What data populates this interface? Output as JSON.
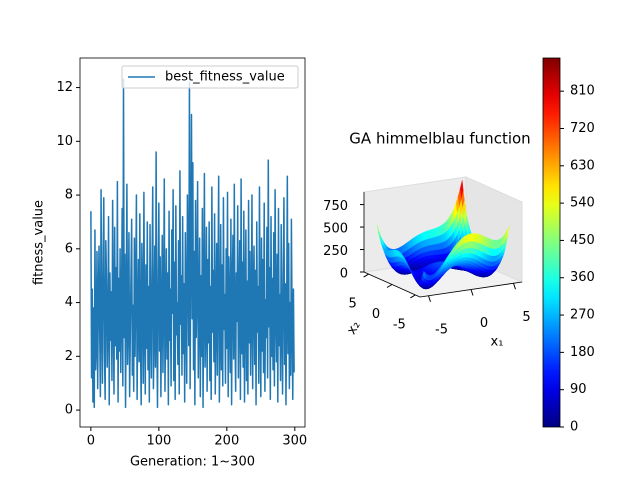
{
  "chart_data": [
    {
      "type": "line",
      "xlabel": "Generation: 1~300",
      "ylabel": "fitness_value",
      "legend": "upper right",
      "x": [
        0,
        1,
        2,
        3,
        4,
        5,
        6,
        7,
        8,
        9,
        10,
        11,
        12,
        13,
        14,
        15,
        16,
        17,
        18,
        19,
        20,
        21,
        22,
        23,
        24,
        25,
        26,
        27,
        28,
        29,
        30,
        31,
        32,
        33,
        34,
        35,
        36,
        37,
        38,
        39,
        40,
        41,
        42,
        43,
        44,
        45,
        46,
        47,
        48,
        49,
        50,
        51,
        52,
        53,
        54,
        55,
        56,
        57,
        58,
        59,
        60,
        61,
        62,
        63,
        64,
        65,
        66,
        67,
        68,
        69,
        70,
        71,
        72,
        73,
        74,
        75,
        76,
        77,
        78,
        79,
        80,
        81,
        82,
        83,
        84,
        85,
        86,
        87,
        88,
        89,
        90,
        91,
        92,
        93,
        94,
        95,
        96,
        97,
        98,
        99,
        100,
        101,
        102,
        103,
        104,
        105,
        106,
        107,
        108,
        109,
        110,
        111,
        112,
        113,
        114,
        115,
        116,
        117,
        118,
        119,
        120,
        121,
        122,
        123,
        124,
        125,
        126,
        127,
        128,
        129,
        130,
        131,
        132,
        133,
        134,
        135,
        136,
        137,
        138,
        139,
        140,
        141,
        142,
        143,
        144,
        145,
        146,
        147,
        148,
        149,
        150,
        151,
        152,
        153,
        154,
        155,
        156,
        157,
        158,
        159,
        160,
        161,
        162,
        163,
        164,
        165,
        166,
        167,
        168,
        169,
        170,
        171,
        172,
        173,
        174,
        175,
        176,
        177,
        178,
        179,
        180,
        181,
        182,
        183,
        184,
        185,
        186,
        187,
        188,
        189,
        190,
        191,
        192,
        193,
        194,
        195,
        196,
        197,
        198,
        199,
        200,
        201,
        202,
        203,
        204,
        205,
        206,
        207,
        208,
        209,
        210,
        211,
        212,
        213,
        214,
        215,
        216,
        217,
        218,
        219,
        220,
        221,
        222,
        223,
        224,
        225,
        226,
        227,
        228,
        229,
        230,
        231,
        232,
        233,
        234,
        235,
        236,
        237,
        238,
        239,
        240,
        241,
        242,
        243,
        244,
        245,
        246,
        247,
        248,
        249,
        250,
        251,
        252,
        253,
        254,
        255,
        256,
        257,
        258,
        259,
        260,
        261,
        262,
        263,
        264,
        265,
        266,
        267,
        268,
        269,
        270,
        271,
        272,
        273,
        274,
        275,
        276,
        277,
        278,
        279,
        280,
        281,
        282,
        283,
        284,
        285,
        286,
        287,
        288,
        289,
        290,
        291,
        292,
        293,
        294,
        295,
        296,
        297,
        298,
        299
      ],
      "series": [
        {
          "name": "best_fitness_value",
          "color": "#1f77b4",
          "values": [
            7.4,
            1.2,
            4.5,
            0.3,
            3.8,
            0.1,
            6.7,
            1.5,
            2.3,
            5.9,
            0.8,
            4.1,
            6.1,
            2.9,
            0.5,
            8.2,
            3.3,
            1.0,
            5.5,
            7.9,
            2.1,
            0.4,
            6.3,
            4.8,
            1.6,
            3.0,
            7.2,
            0.2,
            5.1,
            2.6,
            4.4,
            1.1,
            7.8,
            3.7,
            0.6,
            6.8,
            2.4,
            5.3,
            1.9,
            8.5,
            0.3,
            4.9,
            2.2,
            6.0,
            1.4,
            3.6,
            7.5,
            0.9,
            12.3,
            2.7,
            5.8,
            0.1,
            4.0,
            8.4,
            1.7,
            3.2,
            6.6,
            0.5,
            2.8,
            5.0,
            7.1,
            1.3,
            3.9,
            0.7,
            6.4,
            2.0,
            4.7,
            8.0,
            0.4,
            3.4,
            5.6,
            1.8,
            7.3,
            2.5,
            0.2,
            6.2,
            4.3,
            1.0,
            8.1,
            3.1,
            0.6,
            5.4,
            2.3,
            7.0,
            1.5,
            4.6,
            0.3,
            6.9,
            3.5,
            1.2,
            5.2,
            8.3,
            0.8,
            2.9,
            6.1,
            1.6,
            9.6,
            3.0,
            0.1,
            4.8,
            7.7,
            2.2,
            5.7,
            0.5,
            3.8,
            6.5,
            1.4,
            4.2,
            8.6,
            0.7,
            3.3,
            6.0,
            1.9,
            5.1,
            0.2,
            7.4,
            2.6,
            4.5,
            0.9,
            6.7,
            3.6,
            8.2,
            1.1,
            5.5,
            0.4,
            7.6,
            2.8,
            4.0,
            1.7,
            6.3,
            0.6,
            8.9,
            3.2,
            5.0,
            1.3,
            7.2,
            2.1,
            4.7,
            0.3,
            6.6,
            3.9,
            1.0,
            8.0,
            5.3,
            2.4,
            12.2,
            0.8,
            6.1,
            11.0,
            3.4,
            9.2,
            1.5,
            5.9,
            0.2,
            7.8,
            2.7,
            4.4,
            8.5,
            1.2,
            3.7,
            6.4,
            0.5,
            5.0,
            2.0,
            7.5,
            0.1,
            4.1,
            8.8,
            1.6,
            3.1,
            6.8,
            0.7,
            5.6,
            2.5,
            7.0,
            1.1,
            4.6,
            0.4,
            8.3,
            2.9,
            5.2,
            1.8,
            7.3,
            0.6,
            3.5,
            6.2,
            1.3,
            4.9,
            8.7,
            0.3,
            2.6,
            6.9,
            1.5,
            5.4,
            0.9,
            7.9,
            3.0,
            4.3,
            1.0,
            6.0,
            2.3,
            8.1,
            0.5,
            5.7,
            3.8,
            1.4,
            7.1,
            0.2,
            4.5,
            6.5,
            1.9,
            8.4,
            2.8,
            0.7,
            5.1,
            3.3,
            7.6,
            1.2,
            4.0,
            6.3,
            0.4,
            8.6,
            2.1,
            5.5,
            1.6,
            7.4,
            0.3,
            3.9,
            6.7,
            1.1,
            4.8,
            0.6,
            7.8,
            2.5,
            5.9,
            1.3,
            3.6,
            8.0,
            0.8,
            4.4,
            6.1,
            1.7,
            5.2,
            0.2,
            7.0,
            2.9,
            4.6,
            1.0,
            8.3,
            3.4,
            0.5,
            6.4,
            2.2,
            5.6,
            1.4,
            7.7,
            0.7,
            4.1,
            2.7,
            6.8,
            1.2,
            9.3,
            3.1,
            5.3,
            0.4,
            7.2,
            2.0,
            4.9,
            1.5,
            6.6,
            0.9,
            8.2,
            3.7,
            1.8,
            5.8,
            0.3,
            7.5,
            2.4,
            4.3,
            1.1,
            6.9,
            3.2,
            0.6,
            5.0,
            7.9,
            1.7,
            4.7,
            0.2,
            3.6,
            8.7,
            2.1,
            6.2,
            0.8,
            4.0,
            1.3,
            7.1,
            3.3,
            0.4,
            4.5,
            1.4
          ]
        }
      ],
      "xlim": [
        -16,
        315
      ],
      "xticks": [
        0,
        100,
        200,
        300
      ],
      "ylim": [
        -0.63,
        13.1
      ],
      "yticks": [
        0,
        2,
        4,
        6,
        8,
        10,
        12
      ]
    },
    {
      "type": "surface",
      "title": "GA himmelblau function",
      "xlabel": "x₁",
      "ylabel": "x₂",
      "xlim": [
        -6,
        6
      ],
      "xticks": [
        -5,
        0,
        5
      ],
      "ylim": [
        -6,
        6
      ],
      "yticks": [
        -5,
        0,
        5
      ],
      "zlim": [
        0,
        890
      ],
      "zticks": [
        0,
        250,
        500,
        750
      ],
      "colormap": "jet",
      "clim": [
        0,
        890
      ],
      "cticks": [
        0,
        90,
        180,
        270,
        360,
        450,
        540,
        630,
        720,
        810
      ]
    }
  ]
}
